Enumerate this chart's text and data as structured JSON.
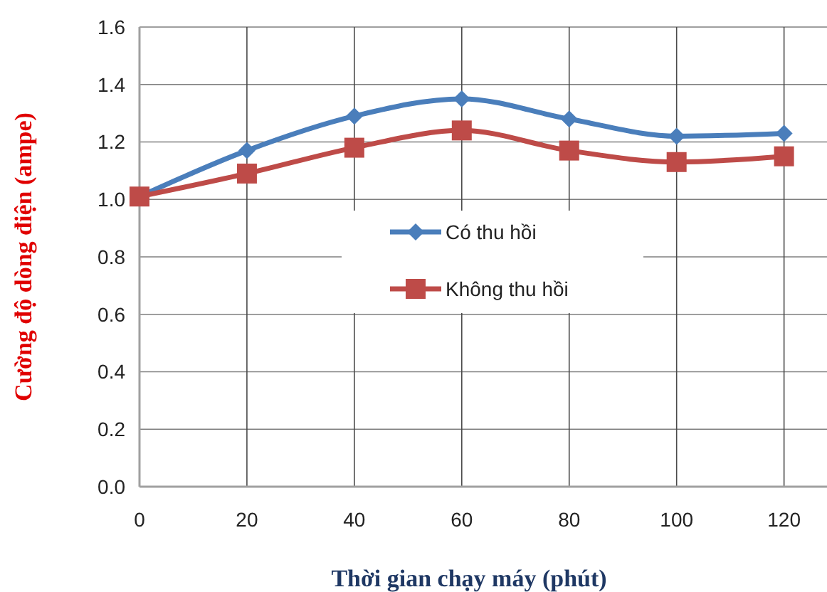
{
  "chart_data": {
    "type": "line",
    "xlabel": "Thời gian chạy máy (phút)",
    "ylabel": "Cường độ dòng điện (ampe)",
    "x": [
      0,
      20,
      40,
      60,
      80,
      100,
      120
    ],
    "series": [
      {
        "name": "Có thu hồi",
        "color": "#4a7ebb",
        "marker": "diamond",
        "values": [
          1.01,
          1.17,
          1.29,
          1.35,
          1.28,
          1.22,
          1.23
        ]
      },
      {
        "name": "Không thu hồi",
        "color": "#be4b48",
        "marker": "square",
        "values": [
          1.01,
          1.09,
          1.18,
          1.24,
          1.17,
          1.13,
          1.15
        ]
      }
    ],
    "xlim": [
      0,
      128
    ],
    "xticks": [
      0,
      20,
      40,
      60,
      80,
      100,
      120
    ],
    "ylim": [
      0,
      1.6
    ],
    "yticks": [
      {
        "value": 0,
        "label": "0.0"
      },
      {
        "value": 0.2,
        "label": "0.2"
      },
      {
        "value": 0.4,
        "label": "0.4"
      },
      {
        "value": 0.6,
        "label": "0.6"
      },
      {
        "value": 0.8,
        "label": "0.8"
      },
      {
        "value": 1,
        "label": "1.0"
      },
      {
        "value": 1.2,
        "label": "1.2"
      },
      {
        "value": 1.4,
        "label": "1.4"
      },
      {
        "value": 1.6,
        "label": "1.6"
      }
    ],
    "grid": true,
    "legend": "center"
  }
}
